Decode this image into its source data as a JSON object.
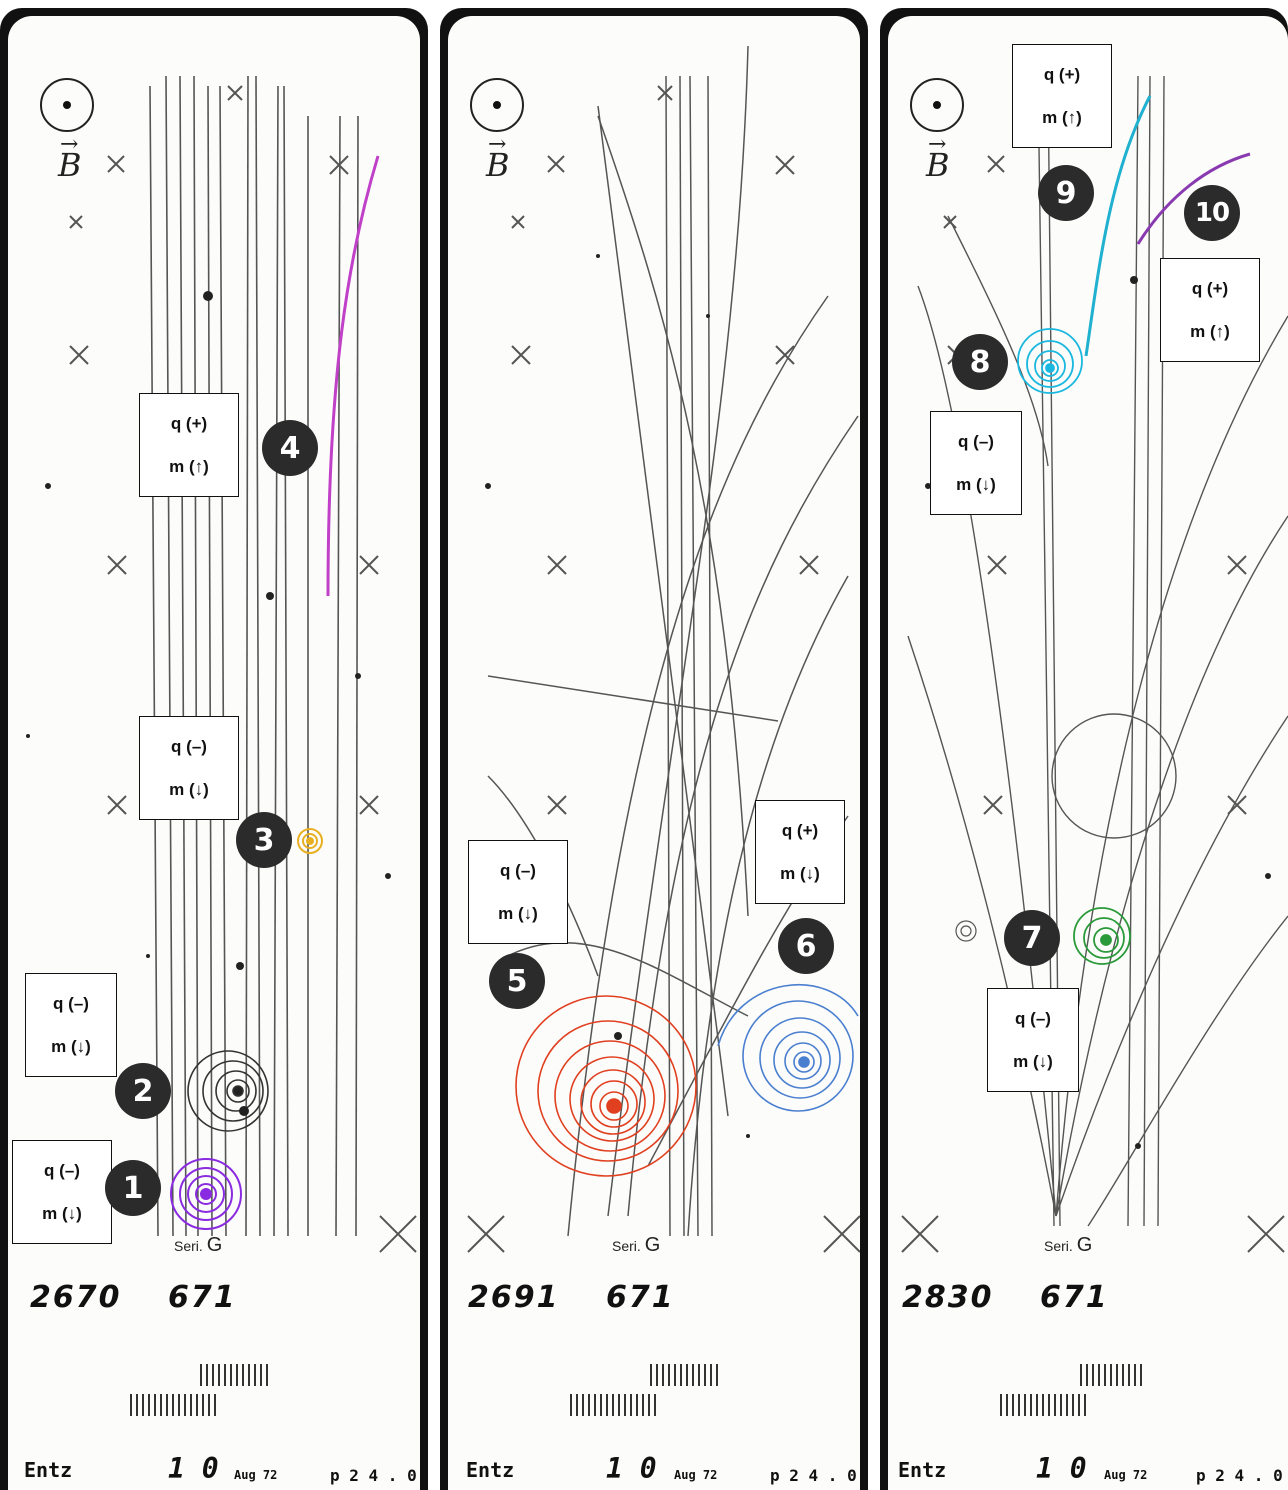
{
  "colors": {
    "track_1": "#8a2be2",
    "track_2": "#333333",
    "track_3": "#e8b020",
    "track_4": "#c040c8",
    "track_5": "#e04020",
    "track_6": "#4a7fd0",
    "track_7": "#2a9a3a",
    "track_8": "#1ab8e0",
    "track_9": "#20b0d0",
    "track_10": "#8a3ab0"
  },
  "panels": [
    {
      "field_symbol": "B",
      "frame_number": "2670",
      "roll_number": "671",
      "series_label": "Seri.",
      "series_letter": "G",
      "footer_left": "Entz",
      "footer_mid": "1 0",
      "footer_date": "Aug 72",
      "footer_right": "p 2 4 . 0",
      "labels": [
        {
          "charge": "q (+)",
          "mass": "m (↑)"
        },
        {
          "charge": "q (–)",
          "mass": "m (↓)"
        },
        {
          "charge": "q (–)",
          "mass": "m (↓)"
        },
        {
          "charge": "q (–)",
          "mass": "m (↓)"
        }
      ],
      "badges": [
        "4",
        "3",
        "2",
        "1"
      ]
    },
    {
      "field_symbol": "B",
      "frame_number": "2691",
      "roll_number": "671",
      "series_label": "Seri.",
      "series_letter": "G",
      "footer_left": "Entz",
      "footer_mid": "1 0",
      "footer_date": "Aug 72",
      "footer_right": "p 2 4 . 0",
      "labels": [
        {
          "charge": "q (–)",
          "mass": "m (↓)"
        },
        {
          "charge": "q (+)",
          "mass": "m (↓)"
        }
      ],
      "badges": [
        "5",
        "6"
      ]
    },
    {
      "field_symbol": "B",
      "frame_number": "2830",
      "roll_number": "671",
      "series_label": "Seri.",
      "series_letter": "G",
      "footer_left": "Entz",
      "footer_mid": "1 0",
      "footer_date": "Aug 72",
      "footer_right": "p 2 4 . 0",
      "labels": [
        {
          "charge": "q (+)",
          "mass": "m (↑)"
        },
        {
          "charge": "q (+)",
          "mass": "m (↑)"
        },
        {
          "charge": "q (–)",
          "mass": "m (↓)"
        },
        {
          "charge": "q (–)",
          "mass": "m (↓)"
        }
      ],
      "badges": [
        "9",
        "10",
        "8",
        "7"
      ]
    }
  ]
}
